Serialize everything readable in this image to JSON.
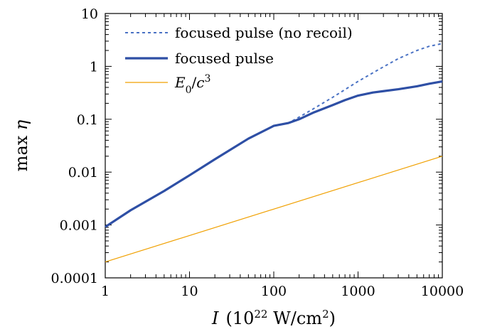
{
  "chart_data": {
    "type": "line",
    "title": "",
    "xlabel": "I (10^22 W/cm^2)",
    "ylabel": "max η",
    "xscale": "log",
    "yscale": "log",
    "xlim": [
      1,
      10000
    ],
    "ylim": [
      0.0001,
      10
    ],
    "xticks": [
      "1",
      "10",
      "100",
      "1000",
      "10000"
    ],
    "yticks": [
      "0.0001",
      "0.001",
      "0.01",
      "0.1",
      "1",
      "10"
    ],
    "grid": false,
    "legend_position": "top-left",
    "series": [
      {
        "name": "focused pulse (no recoil)",
        "style": "dotted",
        "color": "#4a72c4",
        "x": [
          1,
          2,
          5,
          10,
          20,
          50,
          100,
          150,
          200,
          300,
          500,
          1000,
          2000,
          3000,
          5000,
          7000,
          10000
        ],
        "y": [
          0.00092,
          0.0019,
          0.0044,
          0.0087,
          0.0175,
          0.043,
          0.075,
          0.085,
          0.11,
          0.16,
          0.26,
          0.52,
          0.98,
          1.4,
          2.0,
          2.4,
          2.7
        ]
      },
      {
        "name": "focused pulse",
        "style": "solid-thick",
        "color": "#2e4fa5",
        "x": [
          1,
          2,
          5,
          10,
          20,
          50,
          100,
          150,
          200,
          300,
          500,
          700,
          1000,
          1500,
          2000,
          3000,
          5000,
          7000,
          10000
        ],
        "y": [
          0.00092,
          0.0019,
          0.0044,
          0.0087,
          0.0175,
          0.043,
          0.075,
          0.085,
          0.1,
          0.135,
          0.185,
          0.23,
          0.28,
          0.32,
          0.34,
          0.37,
          0.42,
          0.47,
          0.52
        ]
      },
      {
        "name": "E0/c^3",
        "style": "solid-thin",
        "color": "#f0a000",
        "x": [
          1,
          10000
        ],
        "y": [
          0.0002,
          0.02
        ]
      }
    ]
  }
}
